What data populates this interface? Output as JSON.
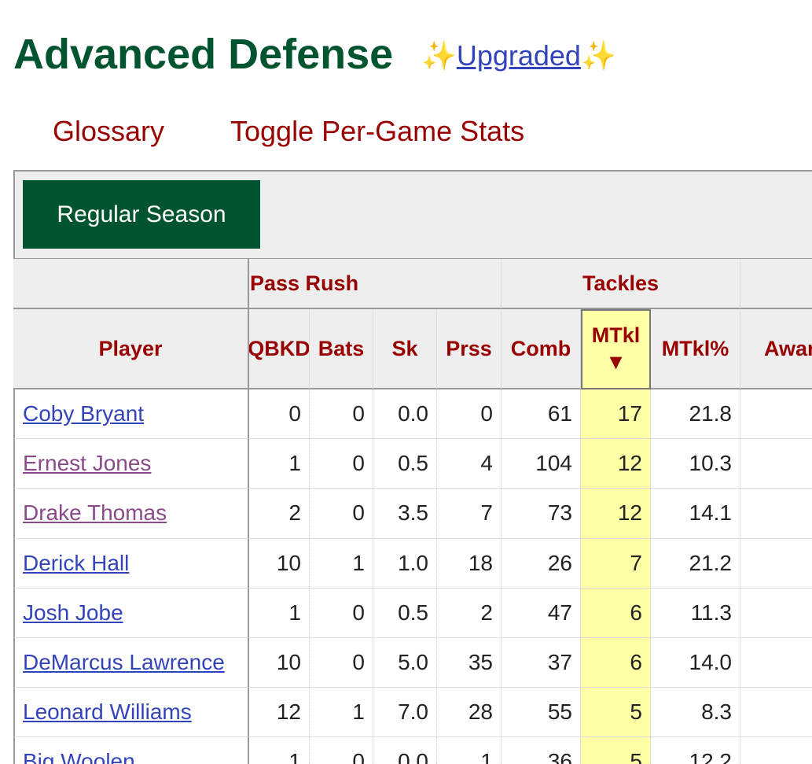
{
  "header": {
    "title": "Advanced Defense",
    "badge_left": "✨",
    "badge_link": "Upgraded",
    "badge_right": "✨"
  },
  "nav": [
    "Glossary",
    "Toggle Per-Game Stats"
  ],
  "tab": "Regular Season",
  "table": {
    "group_headers": [
      "Pass Rush",
      "Tackles"
    ],
    "columns": [
      "Player",
      "QBKD",
      "Bats",
      "Sk",
      "Prss",
      "Comb",
      "MTkl",
      "MTkl%",
      "Awards"
    ],
    "sort_indicator": "▼",
    "rows": [
      {
        "player": "Coby Bryant",
        "visited": false,
        "stats": [
          "0",
          "0",
          "0.0",
          "0",
          "61",
          "17",
          "21.8"
        ]
      },
      {
        "player": "Ernest Jones",
        "visited": true,
        "stats": [
          "1",
          "0",
          "0.5",
          "4",
          "104",
          "12",
          "10.3"
        ]
      },
      {
        "player": "Drake Thomas",
        "visited": true,
        "stats": [
          "2",
          "0",
          "3.5",
          "7",
          "73",
          "12",
          "14.1"
        ]
      },
      {
        "player": "Derick Hall",
        "visited": false,
        "stats": [
          "10",
          "1",
          "1.0",
          "18",
          "26",
          "7",
          "21.2"
        ]
      },
      {
        "player": "Josh Jobe",
        "visited": false,
        "stats": [
          "1",
          "0",
          "0.5",
          "2",
          "47",
          "6",
          "11.3"
        ]
      },
      {
        "player": "DeMarcus Lawrence",
        "visited": false,
        "stats": [
          "10",
          "0",
          "5.0",
          "35",
          "37",
          "6",
          "14.0"
        ]
      },
      {
        "player": "Leonard Williams",
        "visited": false,
        "stats": [
          "12",
          "1",
          "7.0",
          "28",
          "55",
          "5",
          "8.3"
        ]
      },
      {
        "player": "Big Woolen",
        "visited": false,
        "stats": [
          "1",
          "0",
          "0.0",
          "1",
          "36",
          "5",
          "12.2"
        ]
      }
    ]
  }
}
